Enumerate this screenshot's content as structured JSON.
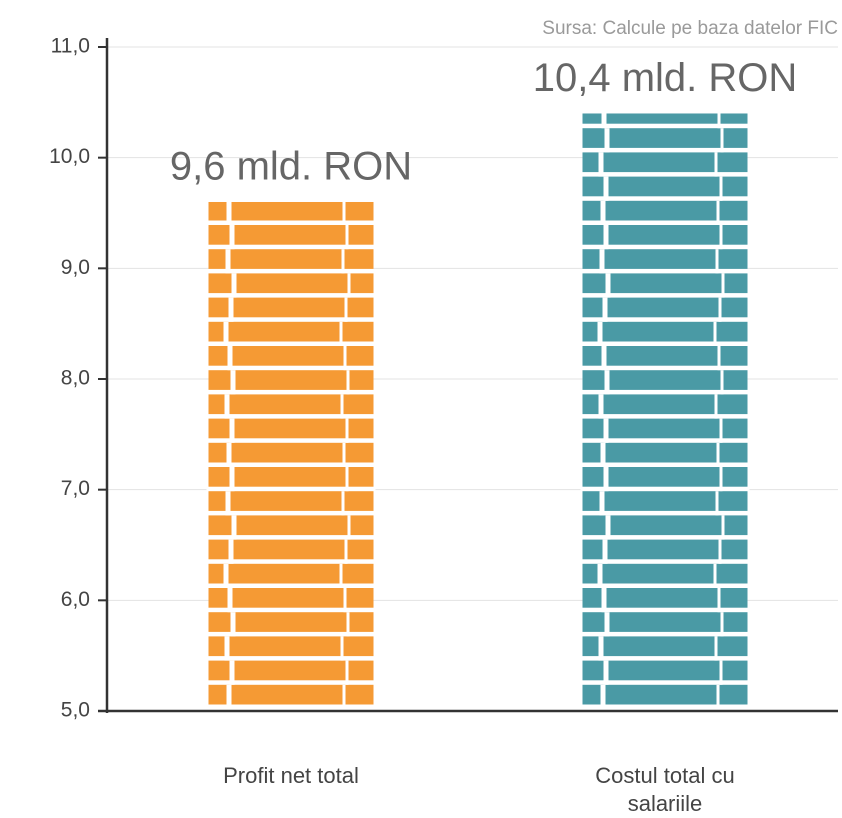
{
  "chart_data": {
    "type": "bar",
    "source": "Sursa: Calcule pe baza datelor FIC",
    "categories": [
      "Profit net total",
      "Costul total cu salariile"
    ],
    "values": [
      9.6,
      10.4
    ],
    "value_labels": [
      "9,6 mld. RON",
      "10,4 mld. RON"
    ],
    "colors": [
      "#f59a34",
      "#4a9aa5"
    ],
    "ylim": [
      5,
      11
    ],
    "yticks": [
      {
        "value": 5,
        "label": "5,0"
      },
      {
        "value": 6,
        "label": "6,0"
      },
      {
        "value": 7,
        "label": "7,0"
      },
      {
        "value": 8,
        "label": "8,0"
      },
      {
        "value": 9,
        "label": "9,0"
      },
      {
        "value": 10,
        "label": "10,0"
      },
      {
        "value": 11,
        "label": "11,0"
      }
    ],
    "grid": true
  }
}
